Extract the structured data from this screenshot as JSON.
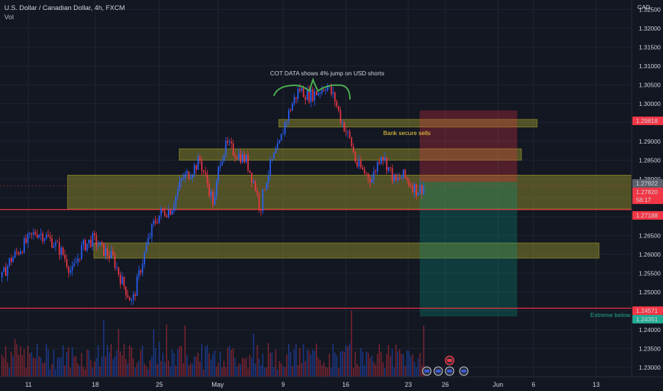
{
  "header": {
    "symbol_title": "U.S. Dollar / Canadian Dollar, 4h, FXCM",
    "volume_label": "Vol"
  },
  "price_axis": {
    "currency": "CAD",
    "ticks": [
      "1.32500",
      "1.32000",
      "1.31500",
      "1.31000",
      "1.30500",
      "1.30000",
      "1.29500",
      "1.29000",
      "1.28500",
      "1.28000",
      "1.27500",
      "1.27000",
      "1.26500",
      "1.26000",
      "1.25500",
      "1.25000",
      "1.24500",
      "1.24000",
      "1.23500",
      "1.23000"
    ],
    "badges": [
      {
        "text": "1.29818",
        "color": "#f23645"
      },
      {
        "text": "1.27922",
        "color": "#5d606b"
      },
      {
        "text": "1.27820",
        "color": "#f23645"
      },
      {
        "text": "58:17",
        "color": "#f23645"
      },
      {
        "text": "1.27188",
        "color": "#f23645"
      },
      {
        "text": "1.24571",
        "color": "#f23645"
      },
      {
        "text": "1.24351",
        "color": "#22ab94"
      }
    ]
  },
  "time_axis": {
    "ticks": [
      "11",
      "18",
      "25",
      "May",
      "9",
      "16",
      "23",
      "26",
      "Jun",
      "6",
      "13"
    ]
  },
  "annotations": {
    "cot_note": "COT DATA shows 4% jump on USD shorts",
    "bank_note": "Bank secure sells",
    "extreme_note": "Extreme below"
  },
  "colors": {
    "background": "#131722",
    "up": "#2962ff",
    "down": "#f23645",
    "zone_fill": "#9b9a2c",
    "line_red": "#f23645",
    "target_teal": "#22ab94"
  },
  "chart_data": {
    "type": "candlestick",
    "symbol": "U.S. Dollar / Canadian Dollar",
    "timeframe": "4h",
    "source": "FXCM",
    "yaxis_unit": "CAD",
    "ylim": [
      1.2275,
      1.3275
    ],
    "x_labels": [
      "11",
      "18",
      "25",
      "May",
      "9",
      "16",
      "23",
      "26",
      "Jun",
      "6",
      "13"
    ],
    "price_path": [
      [
        0,
        1.253
      ],
      [
        12,
        1.258
      ],
      [
        30,
        1.262
      ],
      [
        50,
        1.266
      ],
      [
        62,
        1.265
      ],
      [
        75,
        1.263
      ],
      [
        88,
        1.26
      ],
      [
        100,
        1.255
      ],
      [
        115,
        1.262
      ],
      [
        130,
        1.264
      ],
      [
        145,
        1.261
      ],
      [
        158,
        1.259
      ],
      [
        170,
        1.253
      ],
      [
        185,
        1.247
      ],
      [
        195,
        1.255
      ],
      [
        205,
        1.262
      ],
      [
        215,
        1.268
      ],
      [
        225,
        1.271
      ],
      [
        240,
        1.272
      ],
      [
        255,
        1.28
      ],
      [
        268,
        1.282
      ],
      [
        280,
        1.285
      ],
      [
        292,
        1.278
      ],
      [
        300,
        1.273
      ],
      [
        308,
        1.285
      ],
      [
        318,
        1.289
      ],
      [
        330,
        1.287
      ],
      [
        345,
        1.285
      ],
      [
        358,
        1.278
      ],
      [
        365,
        1.272
      ],
      [
        372,
        1.279
      ],
      [
        380,
        1.284
      ],
      [
        392,
        1.289
      ],
      [
        400,
        1.295
      ],
      [
        410,
        1.3
      ],
      [
        420,
        1.304
      ],
      [
        432,
        1.302
      ],
      [
        445,
        1.303
      ],
      [
        458,
        1.305
      ],
      [
        470,
        1.301
      ],
      [
        478,
        1.296
      ],
      [
        485,
        1.293
      ],
      [
        492,
        1.29
      ],
      [
        500,
        1.284
      ],
      [
        510,
        1.282
      ],
      [
        522,
        1.28
      ],
      [
        535,
        1.287
      ],
      [
        545,
        1.283
      ],
      [
        555,
        1.279
      ],
      [
        565,
        1.281
      ],
      [
        575,
        1.279
      ],
      [
        585,
        1.277
      ],
      [
        595,
        1.278
      ]
    ],
    "zones": [
      {
        "name": "bank-secure-sells",
        "from": 1.2938,
        "to": 1.2958
      },
      {
        "name": "upper-resistance",
        "from": 1.285,
        "to": 1.288
      },
      {
        "name": "main-range",
        "from": 1.272,
        "to": 1.281
      },
      {
        "name": "lower-demand",
        "from": 1.259,
        "to": 1.263
      }
    ],
    "horizontal_lines": [
      1.27188,
      1.24571
    ],
    "trade": {
      "entry": 1.2792,
      "stop": 1.29818,
      "target": 1.24351
    },
    "current_price": 1.2782
  }
}
